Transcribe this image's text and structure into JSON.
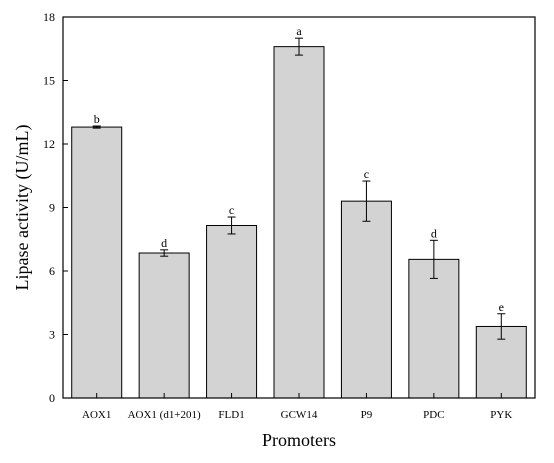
{
  "chart_data": {
    "type": "bar",
    "xlabel": "Promoters",
    "ylabel": "Lipase activity (U/mL)",
    "ylim": [
      0,
      18
    ],
    "yticks": [
      "0",
      "3",
      "6",
      "9",
      "12",
      "15",
      "18"
    ],
    "grid": false,
    "categories": [
      "AOX1",
      "AOX1 (d1+201)",
      "FLD1",
      "GCW14",
      "P9",
      "PDC",
      "PYK"
    ],
    "values": [
      12.8,
      6.85,
      8.15,
      16.6,
      9.3,
      6.55,
      3.38
    ],
    "errors": [
      0.05,
      0.15,
      0.4,
      0.4,
      0.95,
      0.9,
      0.6
    ],
    "significance": [
      "b",
      "d",
      "c",
      "a",
      "c",
      "d",
      "e"
    ],
    "colors": {
      "bar_fill": "#d3d3d3",
      "bar_stroke": "#000000",
      "axis": "#000000"
    }
  }
}
